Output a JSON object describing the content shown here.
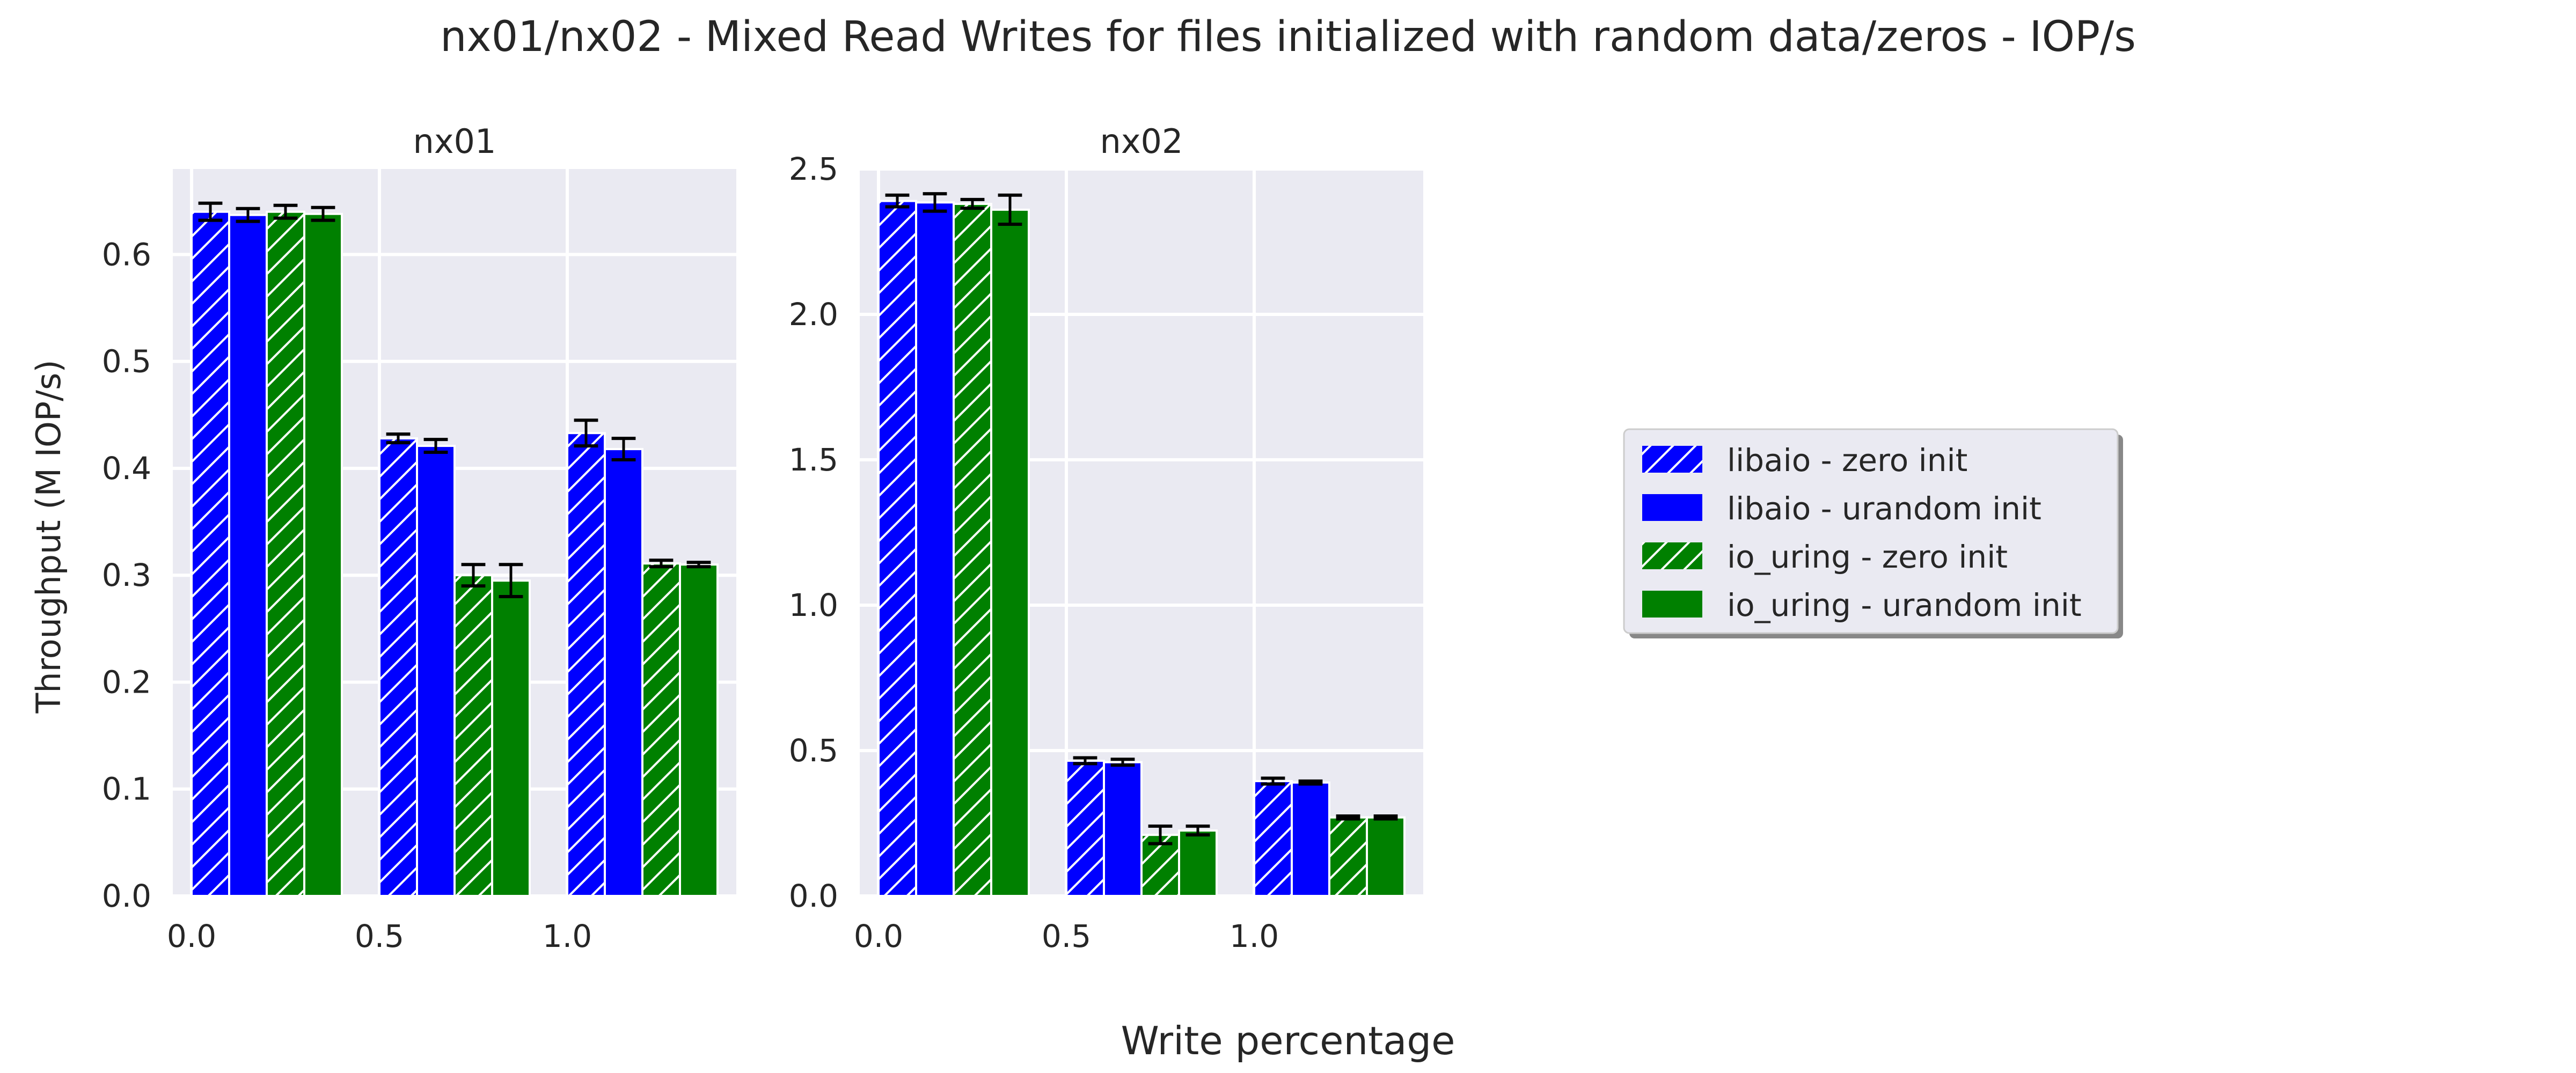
{
  "figure": {
    "suptitle": "nx01/nx02 - Mixed Read Writes for files initialized with random data/zeros - IOP/s",
    "xlabel": "Write percentage",
    "ylabel": "Throughput (M IOP/s)",
    "background": "#eaeaf2"
  },
  "legend": {
    "placement": "right-center",
    "entries": [
      {
        "label": "libaio - zero init",
        "color": "#0000ff",
        "hatch": true
      },
      {
        "label": "libaio - urandom init",
        "color": "#0000ff",
        "hatch": false
      },
      {
        "label": "io_uring - zero init",
        "color": "#008000",
        "hatch": true
      },
      {
        "label": "io_uring - urandom init",
        "color": "#008000",
        "hatch": false
      }
    ]
  },
  "chart_data": [
    {
      "type": "bar",
      "title": "nx01",
      "xlabel": "Write percentage",
      "ylabel": "Throughput (M IOP/s)",
      "categories": [
        "0.0",
        "0.5",
        "1.0"
      ],
      "ylim": [
        0,
        0.68
      ],
      "yticks": [
        "0.0",
        "0.1",
        "0.2",
        "0.3",
        "0.4",
        "0.5",
        "0.6"
      ],
      "grid": true,
      "series": [
        {
          "name": "libaio - zero init",
          "values": [
            0.64,
            0.428,
            0.433
          ],
          "err": [
            0.008,
            0.004,
            0.012
          ]
        },
        {
          "name": "libaio - urandom init",
          "values": [
            0.637,
            0.421,
            0.418
          ],
          "err": [
            0.006,
            0.006,
            0.01
          ]
        },
        {
          "name": "io_uring - zero init",
          "values": [
            0.64,
            0.3,
            0.311
          ],
          "err": [
            0.006,
            0.01,
            0.003
          ]
        },
        {
          "name": "io_uring - urandom init",
          "values": [
            0.638,
            0.295,
            0.31
          ],
          "err": [
            0.006,
            0.015,
            0.002
          ]
        }
      ]
    },
    {
      "type": "bar",
      "title": "nx02",
      "xlabel": "Write percentage",
      "ylabel": "Throughput (M IOP/s)",
      "categories": [
        "0.0",
        "0.5",
        "1.0"
      ],
      "ylim": [
        0,
        2.5
      ],
      "yticks": [
        "0.0",
        "0.5",
        "1.0",
        "1.5",
        "2.0",
        "2.5"
      ],
      "grid": true,
      "series": [
        {
          "name": "libaio - zero init",
          "values": [
            2.39,
            0.465,
            0.395
          ],
          "err": [
            0.02,
            0.01,
            0.01
          ]
        },
        {
          "name": "libaio - urandom init",
          "values": [
            2.385,
            0.46,
            0.39
          ],
          "err": [
            0.03,
            0.01,
            0.005
          ]
        },
        {
          "name": "io_uring - zero init",
          "values": [
            2.38,
            0.21,
            0.27
          ],
          "err": [
            0.015,
            0.03,
            0.005
          ]
        },
        {
          "name": "io_uring - urandom init",
          "values": [
            2.36,
            0.225,
            0.27
          ],
          "err": [
            0.05,
            0.015,
            0.005
          ]
        }
      ]
    }
  ]
}
